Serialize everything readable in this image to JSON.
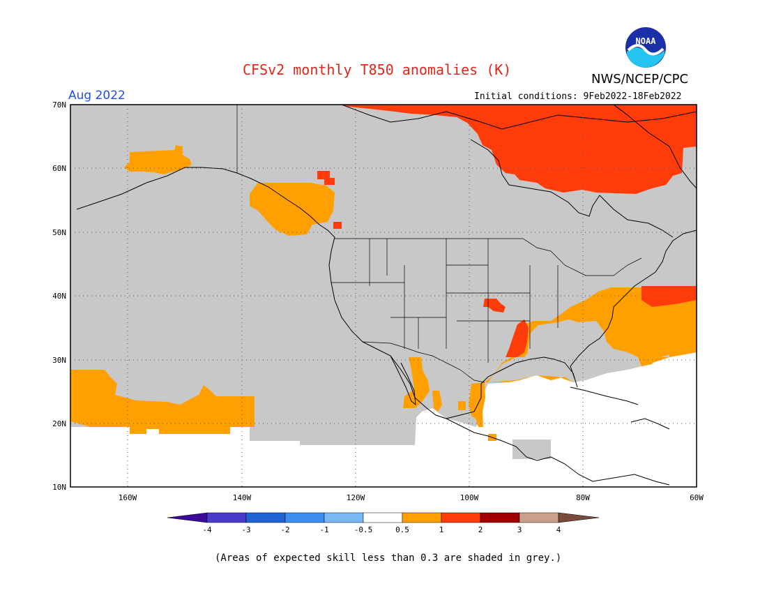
{
  "header": {
    "title": "CFSv2 monthly T850 anomalies (K)",
    "org": "NWS/NCEP/CPC",
    "valid_month": "Aug 2022",
    "initial_conditions": "Initial conditions: 9Feb2022-18Feb2022",
    "logo_text": "NOAA"
  },
  "map": {
    "lat_labels": [
      "70N",
      "60N",
      "50N",
      "40N",
      "30N",
      "20N",
      "10N"
    ],
    "lon_labels": [
      "160W",
      "140W",
      "120W",
      "100W",
      "80W",
      "60W"
    ],
    "lon_range": [
      "170W",
      "60W"
    ],
    "lat_range": [
      "10N",
      "70N"
    ],
    "grid_style": "dotted",
    "background_fill_meaning": "grey = expected skill < 0.3",
    "colors": {
      "grey": "#c8c8c8",
      "orange": "#ffa000",
      "red_orange": "#ff3c0a",
      "ocean": "#ffffff"
    }
  },
  "colorbar": {
    "tick_labels": [
      "-4",
      "-3",
      "-2",
      "-1",
      "-0.5",
      "0.5",
      "1",
      "2",
      "3",
      "4"
    ],
    "colors": [
      "#3b0a9a",
      "#4a3bcc",
      "#1f64d2",
      "#3c8ff0",
      "#7ab8f5",
      "#ffffff",
      "#ffa000",
      "#ff3c0a",
      "#a00000",
      "#c8a08c",
      "#7a4b3a"
    ]
  },
  "footnote": "(Areas of expected skill less than 0.3 are shaded in grey.)"
}
